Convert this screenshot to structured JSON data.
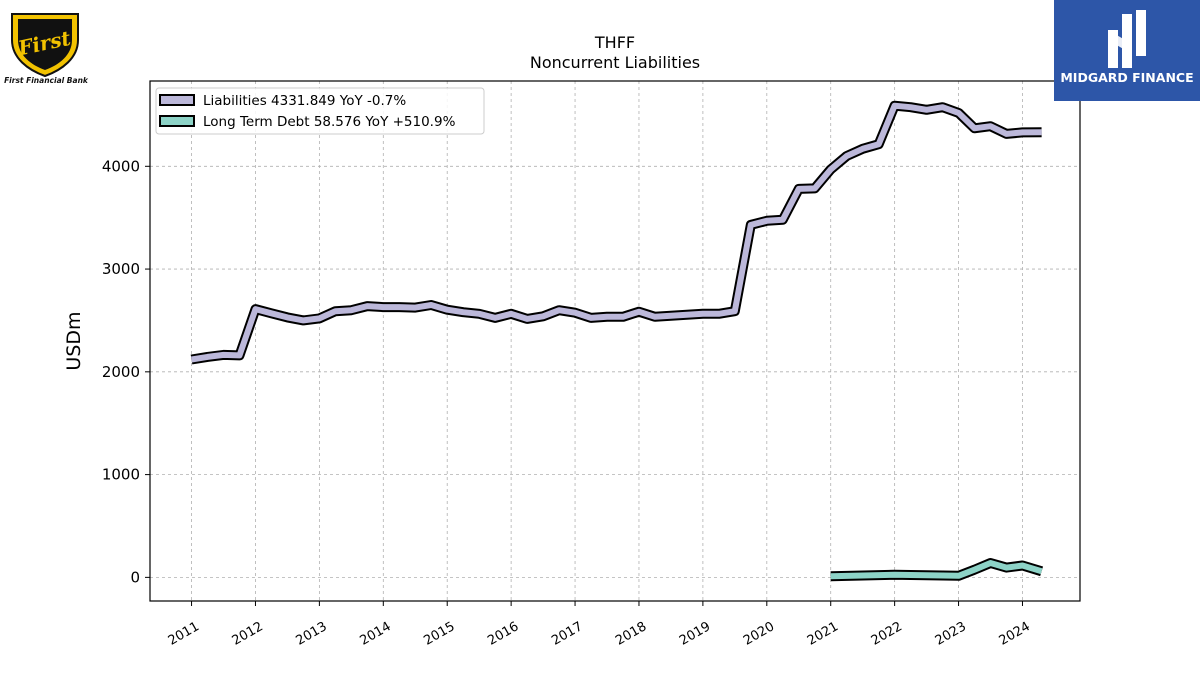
{
  "logos": {
    "left_caption": "First Financial Bank",
    "left_emblem_text": "First",
    "right_caption": "MIDGARD FINANCE"
  },
  "colors": {
    "liabilities": "#bcb8da",
    "long_term_debt": "#8dd3c7",
    "outline": "#000000",
    "grid": "#b0b0b0",
    "brand_blue": "#2d56a8"
  },
  "chart_data": {
    "type": "line",
    "title": "THFF",
    "subtitle": "Noncurrent  Liabilities",
    "ylabel": "USDm",
    "ylim": [
      -230,
      4830
    ],
    "xlim": [
      2010.35,
      2024.9
    ],
    "yticks": [
      0,
      1000,
      2000,
      3000,
      4000
    ],
    "xticks": [
      "2011",
      "2012",
      "2013",
      "2014",
      "2015",
      "2016",
      "2017",
      "2018",
      "2019",
      "2020",
      "2021",
      "2022",
      "2023",
      "2024"
    ],
    "grid": true,
    "legend_position": "top-left",
    "series": [
      {
        "name": "Liabilities",
        "legend_label": "Liabilities  4331.849 YoY -0.7%",
        "color": "#bcb8da",
        "x": [
          2011.0,
          2011.25,
          2011.5,
          2011.75,
          2012.0,
          2012.25,
          2012.5,
          2012.75,
          2013.0,
          2013.25,
          2013.5,
          2013.75,
          2014.0,
          2014.25,
          2014.5,
          2014.75,
          2015.0,
          2015.25,
          2015.5,
          2015.75,
          2016.0,
          2016.25,
          2016.5,
          2016.75,
          2017.0,
          2017.25,
          2017.5,
          2017.75,
          2018.0,
          2018.25,
          2018.5,
          2018.75,
          2019.0,
          2019.25,
          2019.5,
          2019.75,
          2020.0,
          2020.25,
          2020.5,
          2020.75,
          2021.0,
          2021.25,
          2021.5,
          2021.75,
          2022.0,
          2022.25,
          2022.5,
          2022.75,
          2023.0,
          2023.25,
          2023.5,
          2023.75,
          2024.0,
          2024.3
        ],
        "y": [
          2120,
          2145,
          2165,
          2160,
          2610,
          2570,
          2530,
          2500,
          2520,
          2590,
          2600,
          2640,
          2630,
          2630,
          2625,
          2650,
          2605,
          2580,
          2565,
          2525,
          2565,
          2515,
          2540,
          2600,
          2575,
          2525,
          2535,
          2535,
          2585,
          2535,
          2545,
          2555,
          2565,
          2565,
          2590,
          3430,
          3470,
          3480,
          3780,
          3785,
          3970,
          4100,
          4170,
          4215,
          4590,
          4575,
          4550,
          4575,
          4520,
          4370,
          4390,
          4315,
          4330,
          4331.849
        ]
      },
      {
        "name": "Long Term Debt",
        "legend_label": "Long Term Debt  58.576 YoY +510.9%",
        "color": "#8dd3c7",
        "x": [
          2021.0,
          2022.0,
          2023.0,
          2023.25,
          2023.5,
          2023.75,
          2024.0,
          2024.3
        ],
        "y": [
          10,
          25,
          15,
          75,
          140,
          95,
          115,
          58.576
        ]
      }
    ]
  }
}
